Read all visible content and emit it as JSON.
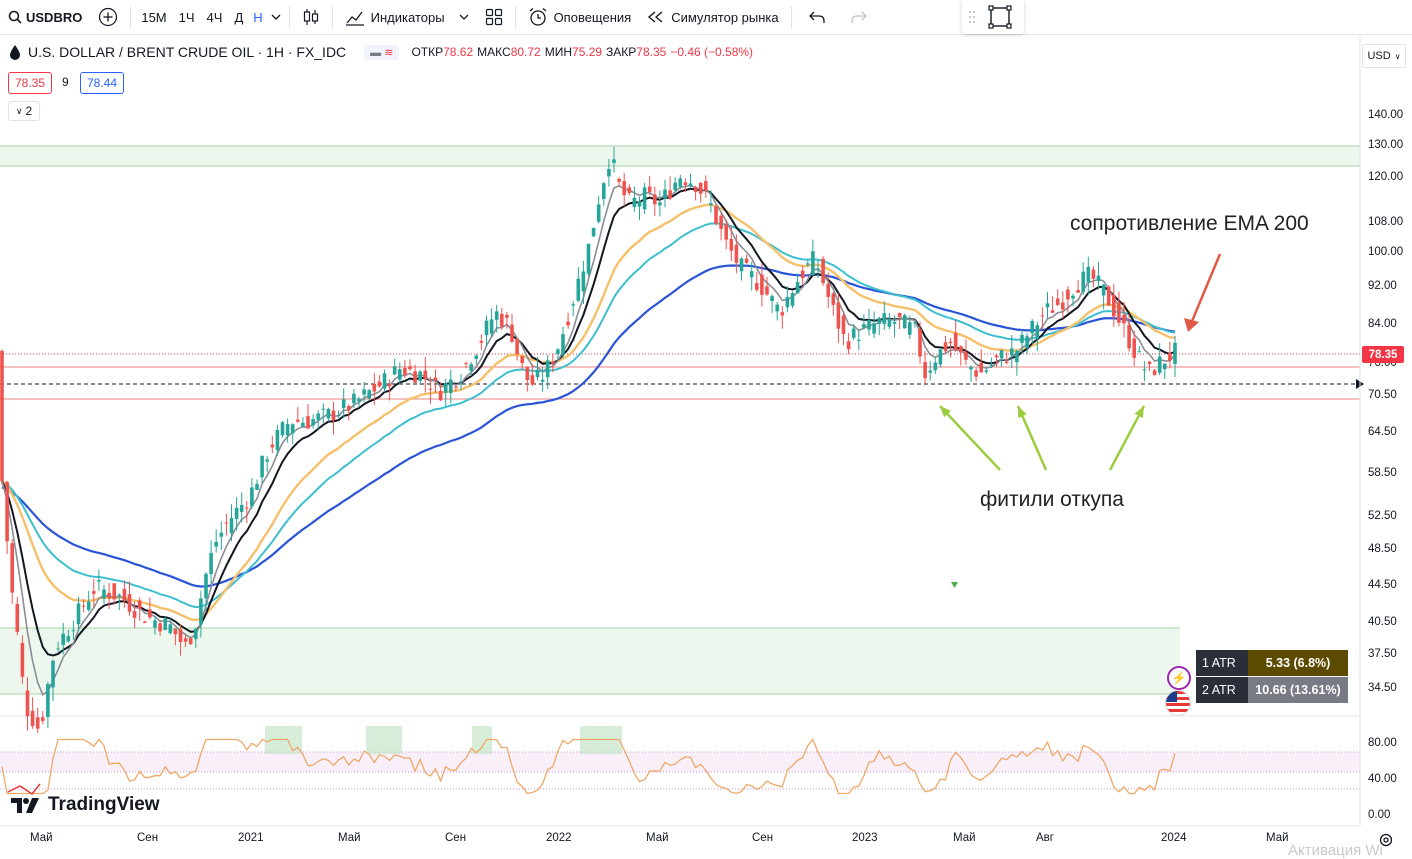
{
  "toolbar": {
    "symbol": "USDBRO",
    "intervals": [
      "15М",
      "1Ч",
      "4Ч",
      "Д",
      "Н"
    ],
    "active_interval": "Н",
    "indicators_label": "Индикаторы",
    "alerts_label": "Оповещения",
    "replay_label": "Симулятор рынка"
  },
  "legend": {
    "title": "U.S. DOLLAR / BRENT CRUDE OIL · 1H · FX_IDC",
    "open_label": "ОТКР",
    "open": "78.62",
    "high_label": "МАКС",
    "high": "80.72",
    "low_label": "МИН",
    "low": "75.29",
    "close_label": "ЗАКР",
    "close": "78.35",
    "change": "−0.46 (−0.58%)",
    "bid": "78.35",
    "spread": "9",
    "ask": "78.44",
    "collapse_count": "2"
  },
  "currency": "USD",
  "price_axis": [
    "140.00",
    "130.00",
    "120.00",
    "108.00",
    "100.00",
    "92.00",
    "84.00",
    "76.00",
    "70.50",
    "64.50",
    "58.50",
    "52.50",
    "48.50",
    "44.50",
    "40.50",
    "37.50",
    "34.50"
  ],
  "last_price_tag": "78.35",
  "osc_axis": [
    "80.00",
    "40.00",
    "0.00"
  ],
  "time_axis": [
    "Май",
    "Сен",
    "2021",
    "Май",
    "Сен",
    "2022",
    "Май",
    "Сен",
    "2023",
    "Май",
    "Авг",
    "2024",
    "Май"
  ],
  "atr": [
    {
      "label": "1 ATR",
      "value": "5.33 (6.8%)",
      "color": "#5b4a00"
    },
    {
      "label": "2 ATR",
      "value": "10.66 (13.61%)",
      "color": "#787b86"
    }
  ],
  "annotations": {
    "resistance": "сопротивление EMA 200",
    "wicks": "фитили откупа"
  },
  "brand": "TradingView",
  "watermark": "Активация Wi"
}
